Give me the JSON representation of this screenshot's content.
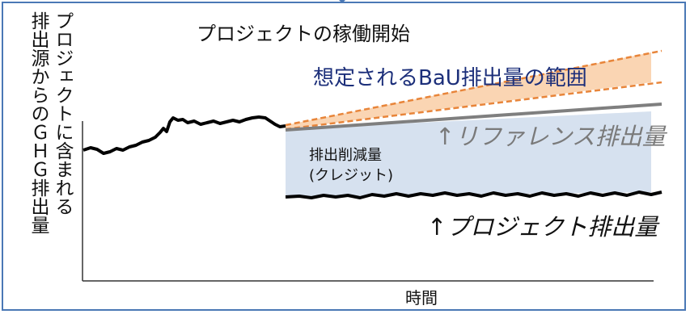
{
  "diagram": {
    "title": "プロジェクトの稼働開始",
    "y_axis_label": {
      "line1": "プロジェクトに含まれる",
      "line2": "排出源からのＧＨＧ排出量"
    },
    "x_axis_label": "時間",
    "bau_range_label": "想定されるBaU排出量の範囲",
    "reference_label": "↑リファレンス排出量",
    "credit_label": {
      "line1": "排出削減量",
      "line2": "(クレジット)"
    },
    "project_label": "↑プロジェクト排出量",
    "colors": {
      "bau_fill": "#f8c79a",
      "bau_lines": "#e8853a",
      "reference_line": "#7f7f7f",
      "credit_fill": "#d6e1ef",
      "project_line": "#000000",
      "frame": "#4a78b5",
      "bau_text": "#1c2f7a"
    }
  }
}
